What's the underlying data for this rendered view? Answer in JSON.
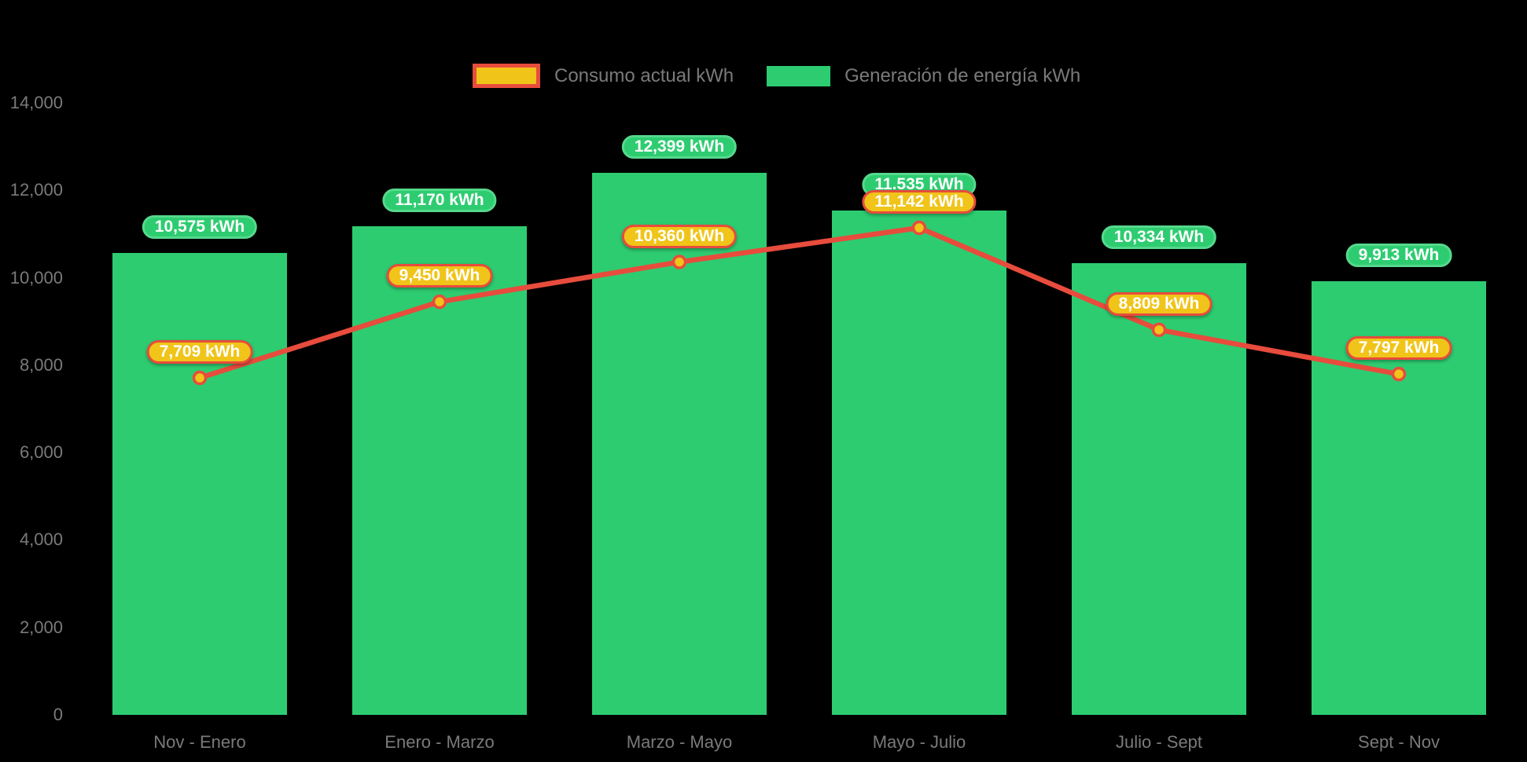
{
  "colors": {
    "background": "#000000",
    "green": "#2ECC71",
    "green_border": "#55D98C",
    "yellow": "#F0C419",
    "red": "#E74C3C",
    "axis_text": "#7A7A7A",
    "badge_text": "#FFFFFF"
  },
  "legend": {
    "consumo_label": "Consumo actual kWh",
    "generacion_label": "Generación de energía kWh"
  },
  "chart_data": {
    "type": "bar",
    "subtype": "bar-with-line-overlay",
    "title": "",
    "xlabel": "",
    "ylabel": "",
    "categories": [
      "Nov - Enero",
      "Enero - Marzo",
      "Marzo - Mayo",
      "Mayo - Julio",
      "Julio - Sept",
      "Sept - Nov"
    ],
    "series": [
      {
        "name": "Generación de energía kWh",
        "type": "bar",
        "color": "#2ECC71",
        "values": [
          10575,
          11170,
          12399,
          11535,
          10334,
          9913
        ],
        "labels": [
          "10,575 kWh",
          "11,170 kWh",
          "12,399 kWh",
          "11.535 kWh",
          "10,334 kWh",
          "9,913 kWh"
        ]
      },
      {
        "name": "Consumo actual kWh",
        "type": "line",
        "color": "#E74C3C",
        "marker_color": "#F0C419",
        "values": [
          7709,
          9450,
          10360,
          11142,
          8809,
          7797
        ],
        "labels": [
          "7,709 kWh",
          "9,450 kWh",
          "10,360 kWh",
          "11,142 kWh",
          "8,809 kWh",
          "7,797 kWh"
        ]
      }
    ],
    "ylim": [
      0,
      14000
    ],
    "yticks": [
      {
        "value": 0,
        "label": "0"
      },
      {
        "value": 2000,
        "label": "2,000"
      },
      {
        "value": 4000,
        "label": "4,000"
      },
      {
        "value": 6000,
        "label": "6,000"
      },
      {
        "value": 8000,
        "label": "8,000"
      },
      {
        "value": 10000,
        "label": "10,000"
      },
      {
        "value": 12000,
        "label": "12,000"
      },
      {
        "value": 14000,
        "label": "14,000"
      }
    ],
    "grid": false,
    "legend_position": "top"
  }
}
